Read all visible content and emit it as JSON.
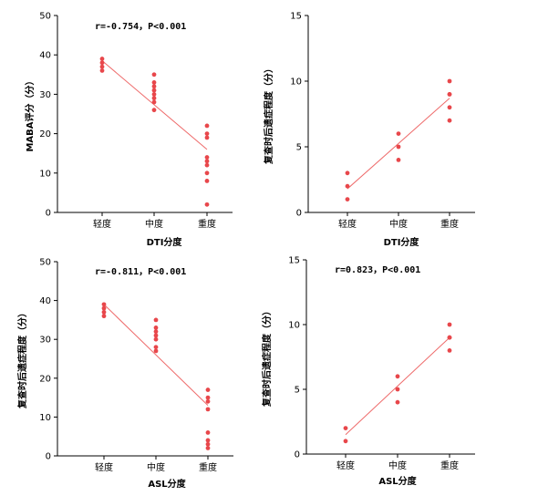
{
  "chart_data": [
    {
      "type": "scatter",
      "xlabel": "DTI分度",
      "ylabel": "MABA评分（分）",
      "annotation": "r=-0.754，P<0.001",
      "categories": [
        "轻度",
        "中度",
        "重度"
      ],
      "ylim": [
        0,
        50
      ],
      "yticks": [
        0,
        10,
        20,
        30,
        40,
        50
      ],
      "points": [
        {
          "x": "轻度",
          "y": 39
        },
        {
          "x": "轻度",
          "y": 38
        },
        {
          "x": "轻度",
          "y": 37
        },
        {
          "x": "轻度",
          "y": 36
        },
        {
          "x": "中度",
          "y": 35
        },
        {
          "x": "中度",
          "y": 33
        },
        {
          "x": "中度",
          "y": 32
        },
        {
          "x": "中度",
          "y": 31
        },
        {
          "x": "中度",
          "y": 30
        },
        {
          "x": "中度",
          "y": 29
        },
        {
          "x": "中度",
          "y": 28
        },
        {
          "x": "中度",
          "y": 26
        },
        {
          "x": "重度",
          "y": 22
        },
        {
          "x": "重度",
          "y": 20
        },
        {
          "x": "重度",
          "y": 19
        },
        {
          "x": "重度",
          "y": 14
        },
        {
          "x": "重度",
          "y": 13
        },
        {
          "x": "重度",
          "y": 12
        },
        {
          "x": "重度",
          "y": 10
        },
        {
          "x": "重度",
          "y": 8
        },
        {
          "x": "重度",
          "y": 2
        }
      ],
      "fit_line": {
        "from": {
          "x": "轻度",
          "y": 38.5
        },
        "to": {
          "x": "重度",
          "y": 16
        }
      },
      "marker_color": "#e8474b",
      "line_color": "#ee6a6a"
    },
    {
      "type": "scatter",
      "xlabel": "DTI分度",
      "ylabel": "复查时后遗症程度（分）",
      "annotation": "",
      "categories": [
        "轻度",
        "中度",
        "重度"
      ],
      "ylim": [
        0,
        15
      ],
      "yticks": [
        0,
        5,
        10,
        15
      ],
      "points": [
        {
          "x": "轻度",
          "y": 3
        },
        {
          "x": "轻度",
          "y": 2
        },
        {
          "x": "轻度",
          "y": 1
        },
        {
          "x": "中度",
          "y": 6
        },
        {
          "x": "中度",
          "y": 5
        },
        {
          "x": "中度",
          "y": 4
        },
        {
          "x": "重度",
          "y": 10
        },
        {
          "x": "重度",
          "y": 9
        },
        {
          "x": "重度",
          "y": 9
        },
        {
          "x": "重度",
          "y": 8
        },
        {
          "x": "重度",
          "y": 7
        }
      ],
      "fit_line": {
        "from": {
          "x": "轻度",
          "y": 1.8
        },
        "to": {
          "x": "重度",
          "y": 8.7
        }
      },
      "marker_color": "#e8474b",
      "line_color": "#ee6a6a"
    },
    {
      "type": "scatter",
      "xlabel": "ASL分度",
      "ylabel": "复查时后遗症程度（分）",
      "annotation": "r=-0.811，P<0.001",
      "categories": [
        "轻度",
        "中度",
        "重度"
      ],
      "ylim": [
        0,
        50
      ],
      "yticks": [
        0,
        10,
        20,
        30,
        40,
        50
      ],
      "points": [
        {
          "x": "轻度",
          "y": 39
        },
        {
          "x": "轻度",
          "y": 38
        },
        {
          "x": "轻度",
          "y": 37
        },
        {
          "x": "轻度",
          "y": 36
        },
        {
          "x": "中度",
          "y": 35
        },
        {
          "x": "中度",
          "y": 33
        },
        {
          "x": "中度",
          "y": 32
        },
        {
          "x": "中度",
          "y": 31
        },
        {
          "x": "中度",
          "y": 30
        },
        {
          "x": "中度",
          "y": 28
        },
        {
          "x": "中度",
          "y": 27
        },
        {
          "x": "重度",
          "y": 17
        },
        {
          "x": "重度",
          "y": 15
        },
        {
          "x": "重度",
          "y": 14
        },
        {
          "x": "重度",
          "y": 12
        },
        {
          "x": "重度",
          "y": 6
        },
        {
          "x": "重度",
          "y": 4
        },
        {
          "x": "重度",
          "y": 3
        },
        {
          "x": "重度",
          "y": 2
        }
      ],
      "fit_line": {
        "from": {
          "x": "轻度",
          "y": 39
        },
        "to": {
          "x": "重度",
          "y": 13
        }
      },
      "marker_color": "#e8474b",
      "line_color": "#ee6a6a"
    },
    {
      "type": "scatter",
      "xlabel": "ASL分度",
      "ylabel": "复查时后遗症程度（分）",
      "annotation": "r=0.823，P<0.001",
      "categories": [
        "轻度",
        "中度",
        "重度"
      ],
      "ylim": [
        0,
        15
      ],
      "yticks": [
        0,
        5,
        10,
        15
      ],
      "points": [
        {
          "x": "轻度",
          "y": 2
        },
        {
          "x": "轻度",
          "y": 1
        },
        {
          "x": "中度",
          "y": 6
        },
        {
          "x": "中度",
          "y": 5
        },
        {
          "x": "中度",
          "y": 4
        },
        {
          "x": "重度",
          "y": 10
        },
        {
          "x": "重度",
          "y": 9
        },
        {
          "x": "重度",
          "y": 9
        },
        {
          "x": "重度",
          "y": 8
        }
      ],
      "fit_line": {
        "from": {
          "x": "轻度",
          "y": 1.5
        },
        "to": {
          "x": "重度",
          "y": 9
        }
      },
      "marker_color": "#e8474b",
      "line_color": "#ee6a6a"
    }
  ]
}
